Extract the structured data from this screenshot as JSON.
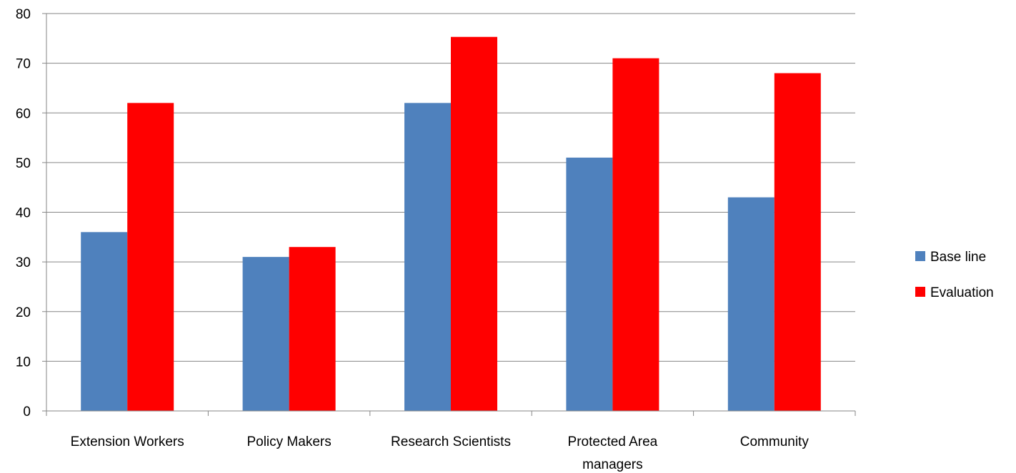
{
  "chart_data": {
    "type": "bar",
    "categories": [
      "Extension Workers",
      "Policy Makers",
      "Research Scientists",
      "Protected Area managers",
      "Community"
    ],
    "category_lines": [
      [
        "Extension Workers"
      ],
      [
        "Policy Makers"
      ],
      [
        "Research Scientists"
      ],
      [
        "Protected Area",
        "managers"
      ],
      [
        "Community"
      ]
    ],
    "series": [
      {
        "name": "Base line",
        "color": "#4f81bd",
        "values": [
          36,
          31,
          62,
          51,
          43
        ]
      },
      {
        "name": "Evaluation",
        "color": "#ff0000",
        "values": [
          62,
          33,
          75.3,
          71,
          68
        ]
      }
    ],
    "ylim": [
      0,
      80
    ],
    "yticks": [
      0,
      10,
      20,
      30,
      40,
      50,
      60,
      70,
      80
    ],
    "grid": true,
    "legend_position": "right"
  }
}
